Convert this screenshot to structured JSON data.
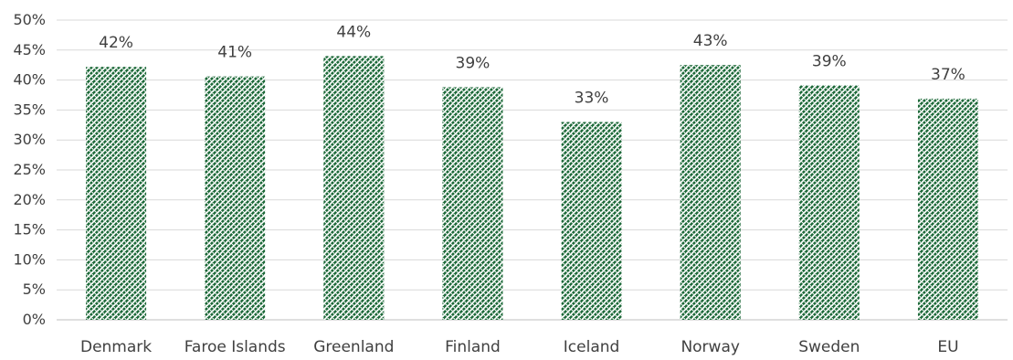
{
  "chart_data": {
    "type": "bar",
    "title": "",
    "xlabel": "",
    "ylabel": "",
    "categories": [
      "Denmark",
      "Faroe Islands",
      "Greenland",
      "Finland",
      "Iceland",
      "Norway",
      "Sweden",
      "EU"
    ],
    "values": [
      42.2,
      40.6,
      44.0,
      38.8,
      33.0,
      42.5,
      39.1,
      36.9
    ],
    "data_labels": [
      "42%",
      "41%",
      "44%",
      "39%",
      "33%",
      "43%",
      "39%",
      "37%"
    ],
    "ylim": [
      0,
      50
    ],
    "y_ticks": [
      0,
      5,
      10,
      15,
      20,
      25,
      30,
      35,
      40,
      45,
      50
    ],
    "y_tick_labels": [
      "0%",
      "5%",
      "10%",
      "15%",
      "20%",
      "25%",
      "30%",
      "35%",
      "40%",
      "45%",
      "50%"
    ],
    "grid": true,
    "legend": false,
    "colors": {
      "bar_fill_dark": "#1e6a3a",
      "bar_fill_light": "#ffffff",
      "gridline": "#d9d9d9",
      "axis_line": "#bfbfbf",
      "text": "#404040"
    },
    "bar_pattern": "diagonal-dashed"
  }
}
